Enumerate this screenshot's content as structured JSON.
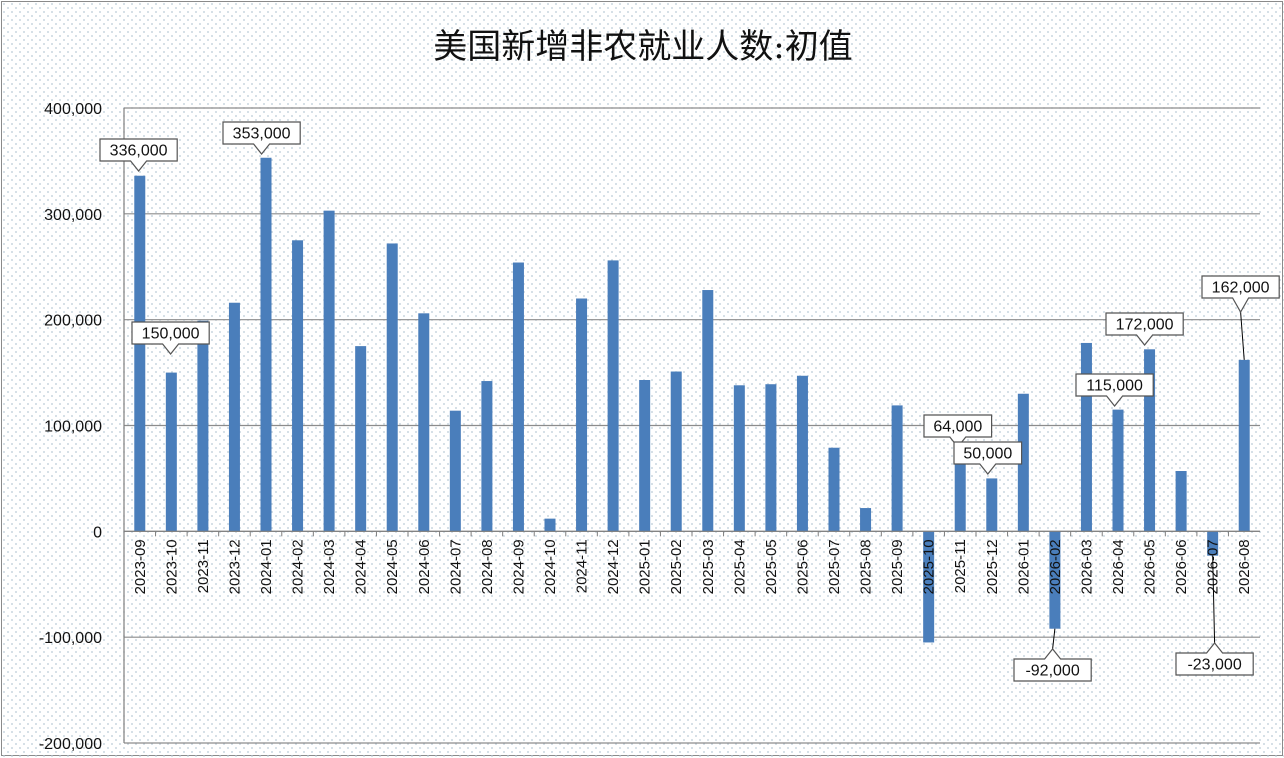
{
  "chart_data": {
    "type": "bar",
    "title": "美国新增非农就业人数:初值",
    "xlabel": "",
    "ylabel": "",
    "ylim": [
      -200000,
      400000
    ],
    "yticks": [
      400000,
      300000,
      200000,
      100000,
      0,
      -100000,
      -200000
    ],
    "ytick_labels": [
      "400,000",
      "300,000",
      "200,000",
      "100,000",
      "0",
      "-100,000",
      "-200,000"
    ],
    "grid": true,
    "legend": "none",
    "bar_color": "#4a7ebb",
    "categories": [
      "2023-09",
      "2023-10",
      "2023-11",
      "2023-12",
      "2024-01",
      "2024-02",
      "2024-03",
      "2024-04",
      "2024-05",
      "2024-06",
      "2024-07",
      "2024-08",
      "2024-09",
      "2024-10",
      "2024-11",
      "2024-12",
      "2025-01",
      "2025-02",
      "2025-03",
      "2025-04",
      "2025-05",
      "2025-06",
      "2025-07",
      "2025-08",
      "2025-09",
      "2025-10",
      "2025-11",
      "2025-12",
      "2026-01",
      "2026-02",
      "2026-03",
      "2026-04",
      "2026-05",
      "2026-06",
      "2026-07",
      "2026-08"
    ],
    "values": [
      336000,
      150000,
      199000,
      216000,
      353000,
      275000,
      303000,
      175000,
      272000,
      206000,
      114000,
      142000,
      254000,
      12000,
      220000,
      256000,
      143000,
      151000,
      228000,
      138000,
      139000,
      147000,
      79000,
      22000,
      119000,
      -105000,
      64000,
      50000,
      130000,
      -92000,
      178000,
      115000,
      172000,
      57000,
      -23000,
      162000
    ],
    "data_labels": [
      {
        "index": 0,
        "text": "336,000"
      },
      {
        "index": 1,
        "text": "150,000"
      },
      {
        "index": 4,
        "text": "353,000"
      },
      {
        "index": 26,
        "text": "64,000"
      },
      {
        "index": 27,
        "text": "50,000"
      },
      {
        "index": 29,
        "text": "-92,000"
      },
      {
        "index": 31,
        "text": "115,000"
      },
      {
        "index": 32,
        "text": "172,000"
      },
      {
        "index": 34,
        "text": "-23,000"
      },
      {
        "index": 35,
        "text": "162,000"
      }
    ]
  }
}
